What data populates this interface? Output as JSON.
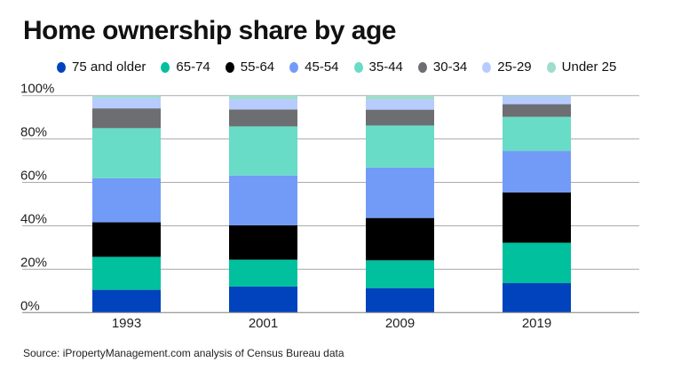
{
  "chart_data": {
    "type": "bar",
    "stacked": true,
    "title": "Home ownership share by age",
    "source": "Source: iPropertyManagement.com analysis of Census Bureau data",
    "categories": [
      "1993",
      "2001",
      "2009",
      "2019"
    ],
    "ylim": [
      0,
      100
    ],
    "yticks": [
      "0%",
      "20%",
      "40%",
      "60%",
      "80%",
      "100%"
    ],
    "grid": true,
    "legend_position": "top",
    "series": [
      {
        "name": "75 and older",
        "color": "#0043bc",
        "values": [
          10.5,
          12.0,
          11.3,
          13.6
        ]
      },
      {
        "name": "65-74",
        "color": "#00c09e",
        "values": [
          15.2,
          12.4,
          12.8,
          18.6
        ]
      },
      {
        "name": "55-64",
        "color": "#000000",
        "values": [
          15.9,
          15.8,
          19.5,
          23.2
        ]
      },
      {
        "name": "45-54",
        "color": "#729bf8",
        "values": [
          20.3,
          23.0,
          23.2,
          19.1
        ]
      },
      {
        "name": "35-44",
        "color": "#68dcc6",
        "values": [
          23.1,
          22.6,
          19.4,
          15.7
        ]
      },
      {
        "name": "30-34",
        "color": "#6d6e71",
        "values": [
          9.1,
          7.8,
          7.3,
          5.8
        ]
      },
      {
        "name": "25-29",
        "color": "#b8cbff",
        "values": [
          4.7,
          4.6,
          4.6,
          3.5
        ]
      },
      {
        "name": "Under 25",
        "color": "#9edccc",
        "values": [
          1.2,
          1.8,
          1.9,
          0.5
        ]
      }
    ]
  }
}
